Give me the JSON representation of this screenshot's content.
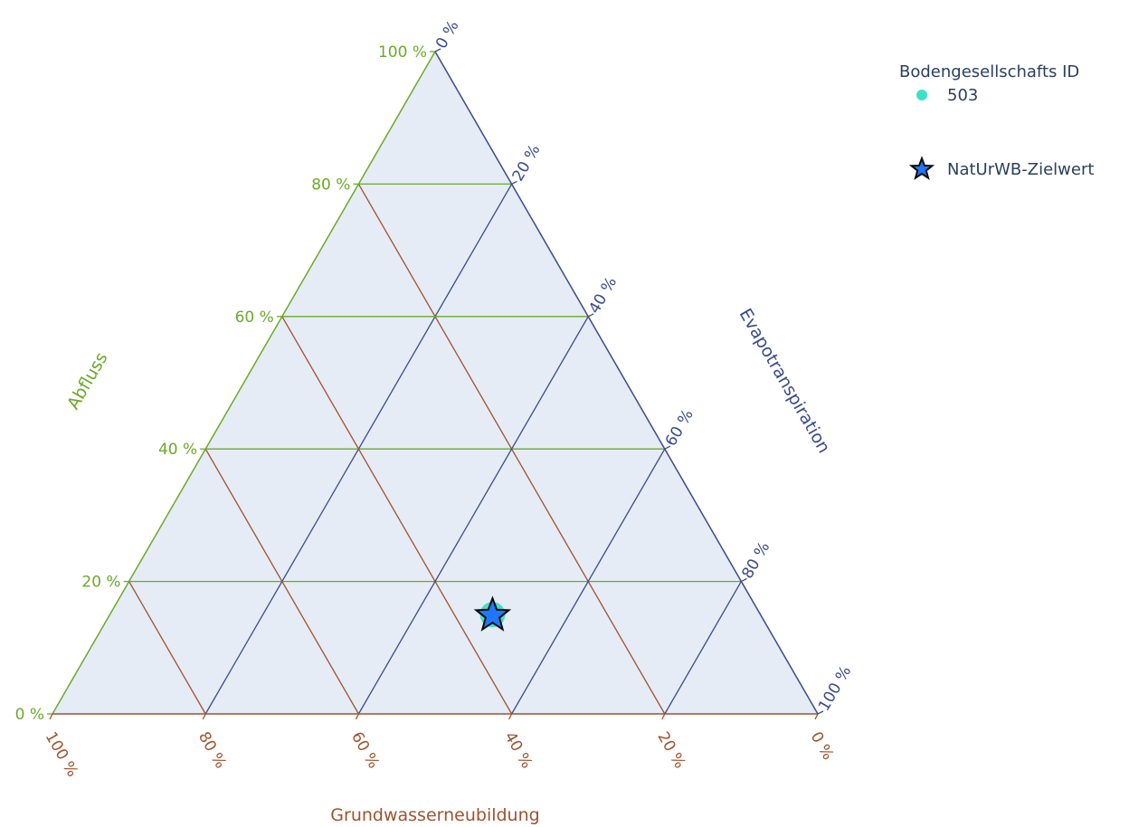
{
  "chart_data": {
    "type": "ternary",
    "axes": {
      "a": {
        "title": "Abfluss",
        "color": "#6aaa2a"
      },
      "b": {
        "title": "Grundwasserneubildung",
        "color": "#a0522d"
      },
      "c": {
        "title": "Evapotranspiration",
        "color": "#3b4a8c"
      }
    },
    "ticks": [
      0,
      20,
      40,
      60,
      80,
      100
    ],
    "tick_suffix": " %",
    "background": "#e5ecf6",
    "grid": true,
    "legend": {
      "title": "Bodengesellschafts ID",
      "position": "top-right",
      "entries": [
        {
          "name": "503",
          "symbol": "circle",
          "color": "#40e0c8"
        },
        {
          "name": "NatUrWB-Zielwert",
          "symbol": "star",
          "color": "#1f77ff"
        }
      ]
    },
    "series": [
      {
        "name": "503",
        "symbol": "circle",
        "color": "#40e0c8",
        "points": [
          {
            "a": 15,
            "b": 35,
            "c": 50
          }
        ]
      },
      {
        "name": "NatUrWB-Zielwert",
        "symbol": "star",
        "color": "#1f77ff",
        "points": [
          {
            "a": 15,
            "b": 35,
            "c": 50
          }
        ]
      }
    ]
  }
}
